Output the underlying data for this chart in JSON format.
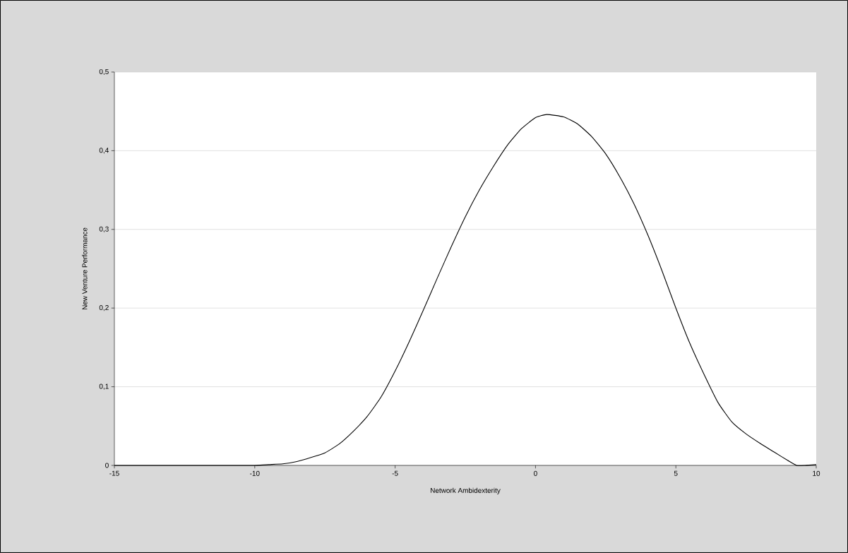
{
  "chart_data": {
    "type": "line",
    "xlabel": "Network Ambidexterity",
    "ylabel": "New Venture Performance",
    "xlim": [
      -15,
      10
    ],
    "xticks": [
      -15,
      -10,
      -5,
      0,
      5,
      10
    ],
    "ylim": [
      0,
      0.5
    ],
    "yticks": [
      {
        "value": 0,
        "label": "0"
      },
      {
        "value": 0.1,
        "label": "0,1"
      },
      {
        "value": 0.2,
        "label": "0,2"
      },
      {
        "value": 0.3,
        "label": "0,3"
      },
      {
        "value": 0.4,
        "label": "0,4"
      },
      {
        "value": 0.5,
        "label": "0,5"
      }
    ],
    "grid": "y",
    "series": [
      {
        "color": "#000000",
        "x": [
          -15,
          -12,
          -10,
          -9.5,
          -9,
          -8.5,
          -8,
          -7.5,
          -7,
          -6.5,
          -6,
          -5.5,
          -5,
          -4.5,
          -4,
          -3.5,
          -3,
          -2.5,
          -2,
          -1.5,
          -1,
          -0.5,
          0,
          0.4,
          1,
          1.5,
          2,
          2.5,
          3,
          3.5,
          4,
          4.5,
          5,
          5.5,
          6,
          6.5,
          7,
          7.5,
          8,
          8.5,
          9,
          9.3,
          9.6,
          10
        ],
        "values": [
          0,
          0,
          0,
          0.001,
          0.002,
          0.005,
          0.01,
          0.016,
          0.027,
          0.043,
          0.062,
          0.087,
          0.12,
          0.157,
          0.197,
          0.238,
          0.278,
          0.316,
          0.35,
          0.38,
          0.407,
          0.428,
          0.442,
          0.446,
          0.443,
          0.434,
          0.418,
          0.396,
          0.367,
          0.333,
          0.293,
          0.248,
          0.2,
          0.155,
          0.116,
          0.08,
          0.055,
          0.04,
          0.028,
          0.017,
          0.006,
          0,
          0,
          0.001
        ]
      }
    ]
  }
}
